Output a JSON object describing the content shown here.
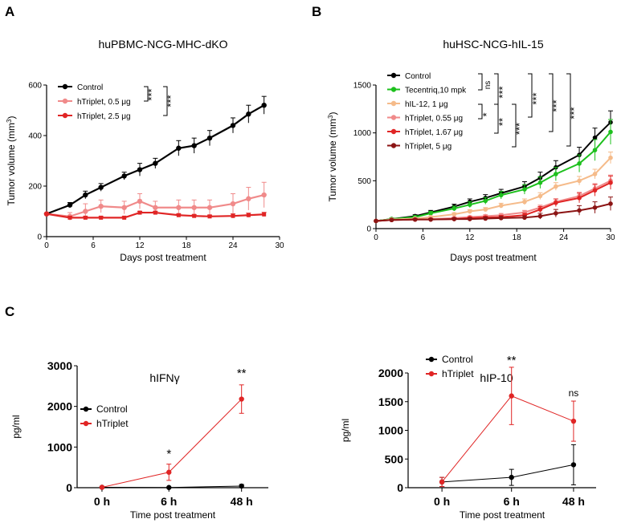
{
  "panel_letters": [
    "A",
    "B",
    "C"
  ],
  "chart_data": [
    {
      "id": "A",
      "type": "line",
      "title": "huPBMC-NCG-MHC-dKO",
      "xlabel": "Days post treatment",
      "ylabel_main": "Tumor volume (mm",
      "ylabel_sup": "3",
      "ylabel_end": ")",
      "xlim": [
        0,
        30
      ],
      "ylim": [
        0,
        600
      ],
      "xticks": [
        0,
        6,
        12,
        18,
        24,
        30
      ],
      "yticks": [
        0,
        200,
        400,
        600
      ],
      "series": [
        {
          "name": "Control",
          "color": "#000000",
          "x": [
            0,
            3,
            5,
            7,
            10,
            12,
            14,
            17,
            19,
            21,
            24,
            26,
            28
          ],
          "y": [
            90,
            125,
            165,
            195,
            240,
            265,
            290,
            350,
            360,
            390,
            440,
            485,
            520
          ],
          "err": [
            0,
            10,
            15,
            15,
            15,
            25,
            20,
            30,
            30,
            30,
            30,
            35,
            35
          ]
        },
        {
          "name": "hTriplet, 0.5 μg",
          "color": "#f08a8a",
          "x": [
            0,
            3,
            5,
            7,
            10,
            12,
            14,
            17,
            19,
            21,
            24,
            26,
            28
          ],
          "y": [
            90,
            80,
            100,
            120,
            115,
            140,
            115,
            115,
            115,
            115,
            130,
            150,
            165
          ],
          "err": [
            0,
            15,
            30,
            25,
            25,
            30,
            25,
            30,
            30,
            30,
            40,
            45,
            50
          ]
        },
        {
          "name": "hTriplet, 2.5 μg",
          "color": "#e02525",
          "x": [
            0,
            3,
            5,
            7,
            10,
            12,
            14,
            17,
            19,
            21,
            24,
            26,
            28
          ],
          "y": [
            90,
            75,
            75,
            75,
            75,
            95,
            95,
            85,
            82,
            80,
            82,
            85,
            88
          ],
          "err": [
            0,
            5,
            5,
            5,
            5,
            5,
            5,
            5,
            5,
            5,
            8,
            8,
            8
          ]
        }
      ],
      "significance": [
        "***",
        "***"
      ]
    },
    {
      "id": "B",
      "type": "line",
      "title": "huHSC-NCG-hIL-15",
      "xlabel": "Days post treatment",
      "ylabel_main": "Tumor volume (mm",
      "ylabel_sup": "3",
      "ylabel_end": ")",
      "xlim": [
        0,
        30
      ],
      "ylim": [
        0,
        1500
      ],
      "xticks": [
        0,
        6,
        12,
        18,
        24,
        30
      ],
      "yticks": [
        0,
        500,
        1000,
        1500
      ],
      "series": [
        {
          "name": "Control",
          "color": "#000000",
          "x": [
            0,
            2,
            5,
            7,
            10,
            12,
            14,
            16,
            19,
            21,
            23,
            26,
            28,
            30
          ],
          "y": [
            80,
            100,
            130,
            170,
            230,
            280,
            320,
            370,
            440,
            530,
            640,
            770,
            950,
            1110
          ],
          "err": [
            0,
            10,
            15,
            20,
            25,
            30,
            35,
            40,
            50,
            60,
            70,
            80,
            100,
            120
          ]
        },
        {
          "name": "Tecentriq,10 mpk",
          "color": "#1dc01d",
          "x": [
            0,
            2,
            5,
            7,
            10,
            12,
            14,
            16,
            19,
            21,
            23,
            26,
            28,
            30
          ],
          "y": [
            80,
            100,
            120,
            160,
            210,
            250,
            290,
            350,
            410,
            480,
            570,
            680,
            820,
            1010
          ],
          "err": [
            0,
            10,
            15,
            20,
            25,
            30,
            35,
            40,
            50,
            60,
            70,
            90,
            110,
            130
          ]
        },
        {
          "name": "hIL-12, 1 μg",
          "color": "#f5bb8a",
          "x": [
            0,
            2,
            5,
            7,
            10,
            12,
            14,
            16,
            19,
            21,
            23,
            26,
            28,
            30
          ],
          "y": [
            80,
            95,
            105,
            120,
            150,
            180,
            200,
            240,
            280,
            340,
            440,
            500,
            570,
            740
          ],
          "err": [
            0,
            8,
            10,
            12,
            15,
            18,
            20,
            25,
            30,
            35,
            40,
            45,
            50,
            60
          ]
        },
        {
          "name": "hTriplet, 0.55 μg",
          "color": "#f08a8a",
          "x": [
            0,
            2,
            5,
            7,
            10,
            12,
            14,
            16,
            19,
            21,
            23,
            26,
            28,
            30
          ],
          "y": [
            80,
            90,
            95,
            100,
            110,
            120,
            130,
            140,
            170,
            220,
            280,
            340,
            420,
            500
          ],
          "err": [
            0,
            8,
            10,
            10,
            12,
            12,
            15,
            18,
            20,
            25,
            30,
            40,
            50,
            60
          ]
        },
        {
          "name": "hTriplet, 1.67 μg",
          "color": "#e02525",
          "x": [
            0,
            2,
            5,
            7,
            10,
            12,
            14,
            16,
            19,
            21,
            23,
            26,
            28,
            30
          ],
          "y": [
            80,
            90,
            95,
            95,
            100,
            110,
            115,
            120,
            140,
            200,
            270,
            320,
            400,
            480
          ],
          "err": [
            0,
            8,
            10,
            10,
            12,
            12,
            15,
            18,
            20,
            30,
            40,
            50,
            60,
            70
          ]
        },
        {
          "name": "hTriplet, 5 μg",
          "color": "#8b1414",
          "x": [
            0,
            2,
            5,
            7,
            10,
            12,
            14,
            16,
            19,
            21,
            23,
            26,
            28,
            30
          ],
          "y": [
            80,
            90,
            95,
            95,
            100,
            100,
            105,
            110,
            115,
            130,
            160,
            190,
            220,
            260
          ],
          "err": [
            0,
            8,
            10,
            10,
            12,
            12,
            15,
            18,
            20,
            30,
            40,
            50,
            60,
            70
          ]
        }
      ],
      "significance": [
        "ns",
        "***",
        "***",
        "***",
        "***",
        "*",
        "**",
        "***"
      ]
    },
    {
      "id": "C1",
      "type": "line",
      "title": "hIFNγ",
      "xlabel": "Time post treatment",
      "ylabel": "pg/ml",
      "categories": [
        "0 h",
        "6 h",
        "48 h"
      ],
      "ylim": [
        0,
        3000
      ],
      "yticks": [
        0,
        1000,
        2000,
        3000
      ],
      "series": [
        {
          "name": "Control",
          "color": "#000000",
          "values": [
            10,
            5,
            40
          ],
          "err": [
            5,
            5,
            40
          ]
        },
        {
          "name": "hTriplet",
          "color": "#e02525",
          "values": [
            10,
            380,
            2180
          ],
          "err": [
            5,
            200,
            350
          ]
        }
      ],
      "annotations": [
        "*",
        "**"
      ]
    },
    {
      "id": "C2",
      "type": "line",
      "title": "hIP-10",
      "xlabel": "Time post treatment",
      "ylabel": "pg/ml",
      "categories": [
        "0 h",
        "6 h",
        "48 h"
      ],
      "ylim": [
        0,
        2000
      ],
      "yticks": [
        0,
        500,
        1000,
        1500,
        2000
      ],
      "series": [
        {
          "name": "Control",
          "color": "#000000",
          "values": [
            100,
            180,
            400
          ],
          "err": [
            80,
            140,
            350
          ]
        },
        {
          "name": "hTriplet",
          "color": "#e02525",
          "values": [
            100,
            1600,
            1160
          ],
          "err": [
            80,
            500,
            350
          ]
        }
      ],
      "annotations": [
        "**",
        "ns"
      ]
    }
  ]
}
